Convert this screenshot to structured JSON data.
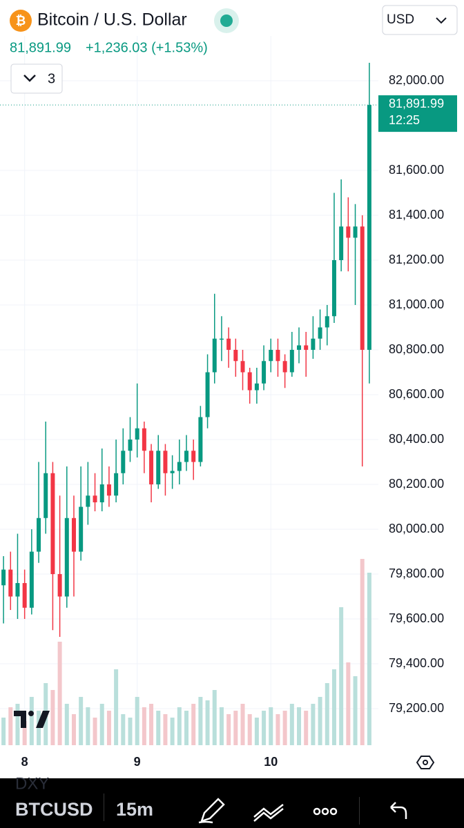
{
  "ui": {
    "currency": "USD",
    "indicator_count": "3",
    "symbol": "BTCUSD",
    "interval": "15m",
    "hidden_symbol": "DXY"
  },
  "chart_data": {
    "type": "candlestick",
    "title": "Bitcoin / U.S. Dollar",
    "last_price": {
      "value": 81891.99,
      "label": "81,891.99",
      "time": "12:25"
    },
    "change": "+1,236.03 (+1.53%)",
    "up_color": "#089981",
    "down_color": "#f23645",
    "up_volume_color": "#b9dfdb",
    "down_volume_color": "#f3c7cb",
    "grid": true,
    "categories": [
      null,
      null,
      null,
      "8",
      null,
      null,
      null,
      null,
      null,
      null,
      null,
      null,
      null,
      null,
      null,
      null,
      null,
      null,
      null,
      "9",
      null,
      null,
      null,
      null,
      null,
      null,
      null,
      null,
      null,
      null,
      null,
      null,
      null,
      null,
      null,
      null,
      null,
      null,
      "10",
      null,
      null,
      null,
      null,
      null,
      null,
      null,
      null,
      null,
      null,
      null,
      null,
      null,
      null
    ],
    "open": [
      79750,
      79820,
      79700,
      79760,
      79650,
      79900,
      80050,
      80250,
      79800,
      79700,
      80050,
      79900,
      80100,
      80150,
      80120,
      80200,
      80150,
      80250,
      80350,
      80400,
      80450,
      80350,
      80200,
      80350,
      80250,
      80260,
      80300,
      80350,
      80300,
      80500,
      80700,
      80850,
      80850,
      80800,
      80750,
      80700,
      80620,
      80650,
      80750,
      80800,
      80750,
      80700,
      80800,
      80820,
      80800,
      80850,
      80900,
      80950,
      81200,
      81350,
      81300,
      81350,
      80800
    ],
    "high": [
      79880,
      79900,
      79980,
      79820,
      80000,
      80300,
      80480,
      80300,
      80150,
      80280,
      80150,
      80280,
      80300,
      80250,
      80360,
      80280,
      80400,
      80450,
      80500,
      80650,
      80480,
      80380,
      80420,
      80380,
      80330,
      80400,
      80420,
      80400,
      80550,
      80780,
      81050,
      80950,
      80900,
      80850,
      80800,
      80720,
      80720,
      80820,
      80850,
      80850,
      80780,
      80880,
      80900,
      80880,
      80950,
      80980,
      81000,
      81500,
      81560,
      81480,
      81450,
      81400,
      82080
    ],
    "low": [
      79580,
      79640,
      79600,
      79600,
      79620,
      79850,
      79980,
      79550,
      79520,
      79650,
      79700,
      79860,
      80020,
      80080,
      80080,
      80100,
      80120,
      80200,
      80300,
      80320,
      80250,
      80120,
      80180,
      80150,
      80180,
      80200,
      80260,
      80220,
      80280,
      80450,
      80650,
      80750,
      80720,
      80680,
      80620,
      80560,
      80560,
      80620,
      80700,
      80680,
      80630,
      80680,
      80740,
      80680,
      80760,
      80800,
      80820,
      80920,
      81150,
      81150,
      81000,
      80280,
      80650
    ],
    "close": [
      79820,
      79700,
      79760,
      79650,
      79900,
      80050,
      80250,
      79800,
      79700,
      80050,
      79900,
      80100,
      80150,
      80120,
      80200,
      80150,
      80250,
      80350,
      80400,
      80450,
      80350,
      80200,
      80350,
      80250,
      80260,
      80300,
      80350,
      80300,
      80500,
      80700,
      80850,
      80850,
      80800,
      80750,
      80700,
      80620,
      80650,
      80750,
      80800,
      80750,
      80700,
      80800,
      80820,
      80800,
      80850,
      80900,
      80950,
      81200,
      81350,
      81300,
      81350,
      80800,
      81891.99
    ],
    "volume": [
      40,
      55,
      60,
      35,
      70,
      50,
      90,
      80,
      150,
      60,
      45,
      70,
      55,
      40,
      60,
      50,
      110,
      45,
      40,
      70,
      55,
      60,
      50,
      45,
      40,
      55,
      50,
      60,
      70,
      65,
      80,
      55,
      45,
      50,
      60,
      45,
      40,
      50,
      55,
      45,
      50,
      60,
      55,
      50,
      60,
      70,
      90,
      110,
      200,
      120,
      100,
      270,
      250
    ],
    "ylim": [
      79037,
      82360
    ],
    "yticks": [
      {
        "value": 79200,
        "label": "79,200.00"
      },
      {
        "value": 79400,
        "label": "79,400.00"
      },
      {
        "value": 79600,
        "label": "79,600.00"
      },
      {
        "value": 79800,
        "label": "79,800.00"
      },
      {
        "value": 80000,
        "label": "80,000.00"
      },
      {
        "value": 80200,
        "label": "80,200.00"
      },
      {
        "value": 80400,
        "label": "80,400.00"
      },
      {
        "value": 80600,
        "label": "80,600.00"
      },
      {
        "value": 80800,
        "label": "80,800.00"
      },
      {
        "value": 81000,
        "label": "81,000.00"
      },
      {
        "value": 81200,
        "label": "81,200.00"
      },
      {
        "value": 81400,
        "label": "81,400.00"
      },
      {
        "value": 81600,
        "label": "81,600.00"
      },
      {
        "value": 82000,
        "label": "82,000.00"
      }
    ]
  }
}
